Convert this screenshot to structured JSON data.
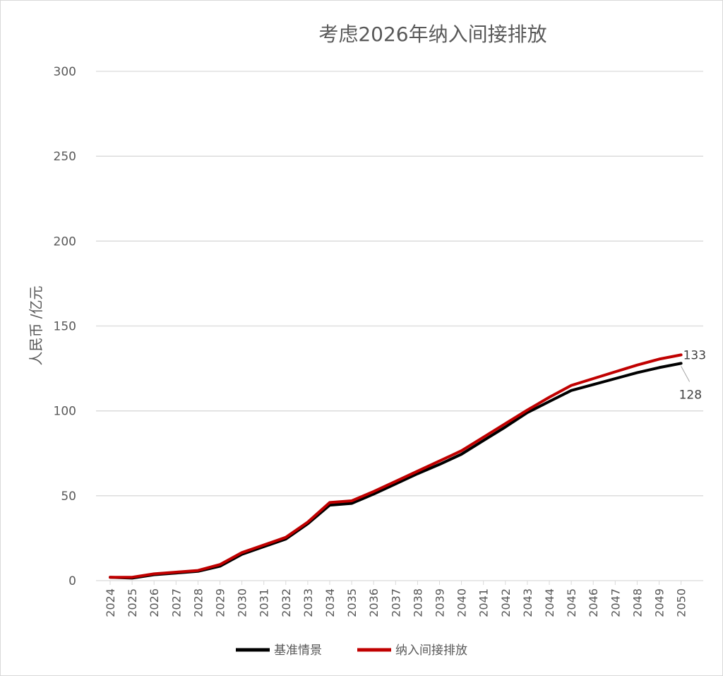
{
  "chart_data": {
    "type": "line",
    "title": "考虑2026年纳入间接排放",
    "xlabel": "",
    "ylabel": "人民币 /亿元",
    "ylim": [
      0,
      300
    ],
    "yticks": [
      0,
      50,
      100,
      150,
      200,
      250,
      300
    ],
    "grid": true,
    "legend_position": "bottom",
    "categories": [
      "2024",
      "2025",
      "2026",
      "2027",
      "2028",
      "2029",
      "2030",
      "2031",
      "2032",
      "2033",
      "2034",
      "2035",
      "2036",
      "2037",
      "2038",
      "2039",
      "2040",
      "2041",
      "2042",
      "2043",
      "2044",
      "2045",
      "2046",
      "2047",
      "2048",
      "2049",
      "2050"
    ],
    "series": [
      {
        "name": "基准情景",
        "color": "#000000",
        "values": [
          2,
          1.5,
          3.5,
          4.5,
          5.5,
          8.5,
          15.5,
          20,
          24.5,
          33.5,
          44.5,
          45.5,
          51,
          57,
          63,
          68.5,
          74.5,
          82.5,
          90.5,
          99,
          105.5,
          112,
          115.5,
          119,
          122.5,
          125.5,
          128
        ]
      },
      {
        "name": "纳入间接排放",
        "color": "#c00000",
        "values": [
          2,
          2,
          4,
          5,
          6,
          9.5,
          16.5,
          21,
          25.5,
          34.5,
          46,
          47,
          52.5,
          58.5,
          64.5,
          70.5,
          76.5,
          84.5,
          92.5,
          100.5,
          108,
          115,
          119,
          123,
          127,
          130.5,
          133
        ]
      }
    ],
    "data_labels": [
      {
        "series": "纳入间接排放",
        "category": "2050",
        "text": "133"
      },
      {
        "series": "基准情景",
        "category": "2050",
        "text": "128"
      }
    ]
  }
}
